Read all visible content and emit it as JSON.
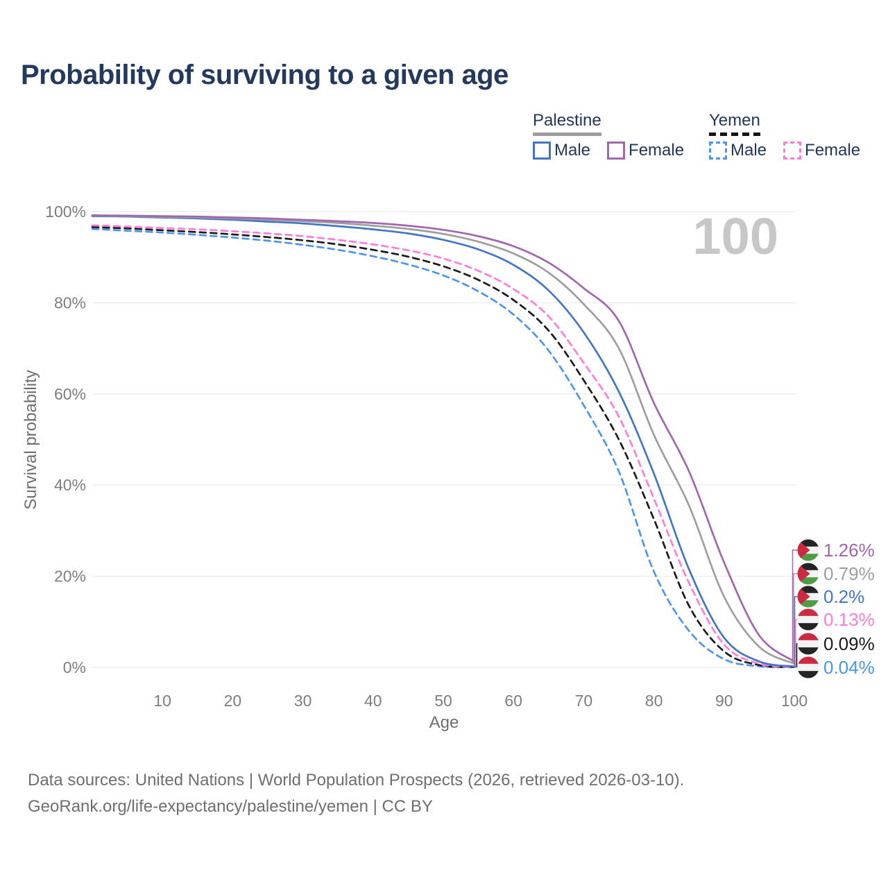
{
  "title": "Probability of surviving to a given age",
  "legend": {
    "groups": [
      {
        "title": "Palestine",
        "style": "solid",
        "items": [
          {
            "label": "Male",
            "color": "#4276C4"
          },
          {
            "label": "Female",
            "color": "#A266AE"
          }
        ]
      },
      {
        "title": "Yemen",
        "style": "dashed",
        "items": [
          {
            "label": "Male",
            "color": "#4B96EC"
          },
          {
            "label": "Female",
            "color": "#FF7BDC"
          }
        ]
      }
    ]
  },
  "footer": {
    "line1": "Data sources: United Nations | World Population Prospects (2026, retrieved 2026-03-10).",
    "line2": "GeoRank.org/life-expectancy/palestine/yemen | CC BY"
  },
  "chart_data": {
    "type": "line",
    "title": "Probability of surviving to a given age",
    "xlabel": "Age",
    "ylabel": "Survival probability",
    "xlim": [
      0,
      100
    ],
    "ylim": [
      0,
      100
    ],
    "grid": "horizontal",
    "legend_position": "top-right",
    "age_counter": "100",
    "x_ticks": [
      10,
      20,
      30,
      40,
      50,
      60,
      70,
      80,
      90,
      100
    ],
    "y_ticks": [
      0,
      20,
      40,
      60,
      80,
      100
    ],
    "y_tick_labels": [
      "0%",
      "20%",
      "40%",
      "60%",
      "80%",
      "100%"
    ],
    "x": [
      0,
      5,
      10,
      15,
      20,
      25,
      30,
      35,
      40,
      45,
      50,
      55,
      60,
      65,
      70,
      75,
      80,
      85,
      90,
      95,
      100
    ],
    "series": [
      {
        "id": "palestine-female",
        "name": "Palestine Female",
        "country": "Palestine",
        "sex": "Female",
        "color": "#A266AE",
        "line": "solid",
        "flag": "palestine",
        "end_label": "1.26%",
        "end_value": 1.26,
        "values": [
          99.2,
          99.1,
          99.0,
          98.9,
          98.7,
          98.5,
          98.2,
          97.9,
          97.5,
          96.9,
          96.0,
          94.6,
          92.4,
          88.8,
          83.2,
          76.0,
          58.0,
          43.0,
          23.0,
          7.0,
          1.26
        ]
      },
      {
        "id": "palestine-total",
        "name": "Palestine",
        "country": "Palestine",
        "sex": "Both",
        "color": "#9E9E9E",
        "line": "solid",
        "flag": "palestine",
        "end_label": "0.79%",
        "end_value": 0.79,
        "values": [
          99.1,
          99.0,
          98.85,
          98.7,
          98.5,
          98.2,
          97.9,
          97.5,
          96.9,
          96.2,
          95.1,
          93.4,
          90.8,
          86.6,
          79.7,
          70.0,
          51.0,
          35.5,
          15.5,
          4.5,
          0.79
        ]
      },
      {
        "id": "palestine-male",
        "name": "Palestine Male",
        "country": "Palestine",
        "sex": "Male",
        "color": "#4276C4",
        "line": "solid",
        "flag": "palestine",
        "end_label": "0.2%",
        "end_value": 0.2,
        "values": [
          99.0,
          98.9,
          98.7,
          98.5,
          98.2,
          97.8,
          97.4,
          96.8,
          96.1,
          95.2,
          93.8,
          91.7,
          88.3,
          82.7,
          73.5,
          60.5,
          42.5,
          21.5,
          6.5,
          1.3,
          0.2
        ]
      },
      {
        "id": "yemen-female",
        "name": "Yemen Female",
        "country": "Yemen",
        "sex": "Female",
        "color": "#FF7BDC",
        "line": "dashed",
        "flag": "yemen",
        "end_label": "0.13%",
        "end_value": 0.13,
        "values": [
          97.0,
          96.7,
          96.4,
          96.1,
          95.7,
          95.2,
          94.6,
          93.8,
          92.8,
          91.5,
          89.7,
          87.0,
          83.0,
          77.0,
          66.8,
          55.0,
          37.0,
          18.5,
          5.0,
          0.8,
          0.13
        ]
      },
      {
        "id": "yemen-total",
        "name": "Yemen",
        "country": "Yemen",
        "sex": "Both",
        "color": "#1A1A1A",
        "line": "dashed",
        "flag": "yemen",
        "end_label": "0.09%",
        "end_value": 0.09,
        "values": [
          96.6,
          96.3,
          95.9,
          95.5,
          95.0,
          94.4,
          93.7,
          92.8,
          91.6,
          90.1,
          88.0,
          85.0,
          80.6,
          73.9,
          63.0,
          50.0,
          32.5,
          13.5,
          3.5,
          0.5,
          0.09
        ]
      },
      {
        "id": "yemen-male",
        "name": "Yemen Male",
        "country": "Yemen",
        "sex": "Male",
        "color": "#4B96EC",
        "line": "dashed",
        "flag": "yemen",
        "end_label": "0.04%",
        "end_value": 0.04,
        "values": [
          96.2,
          95.8,
          95.4,
          94.9,
          94.3,
          93.6,
          92.7,
          91.6,
          90.2,
          88.4,
          86.0,
          82.5,
          77.4,
          69.5,
          57.5,
          43.0,
          21.0,
          8.0,
          1.8,
          0.25,
          0.04
        ]
      }
    ]
  }
}
